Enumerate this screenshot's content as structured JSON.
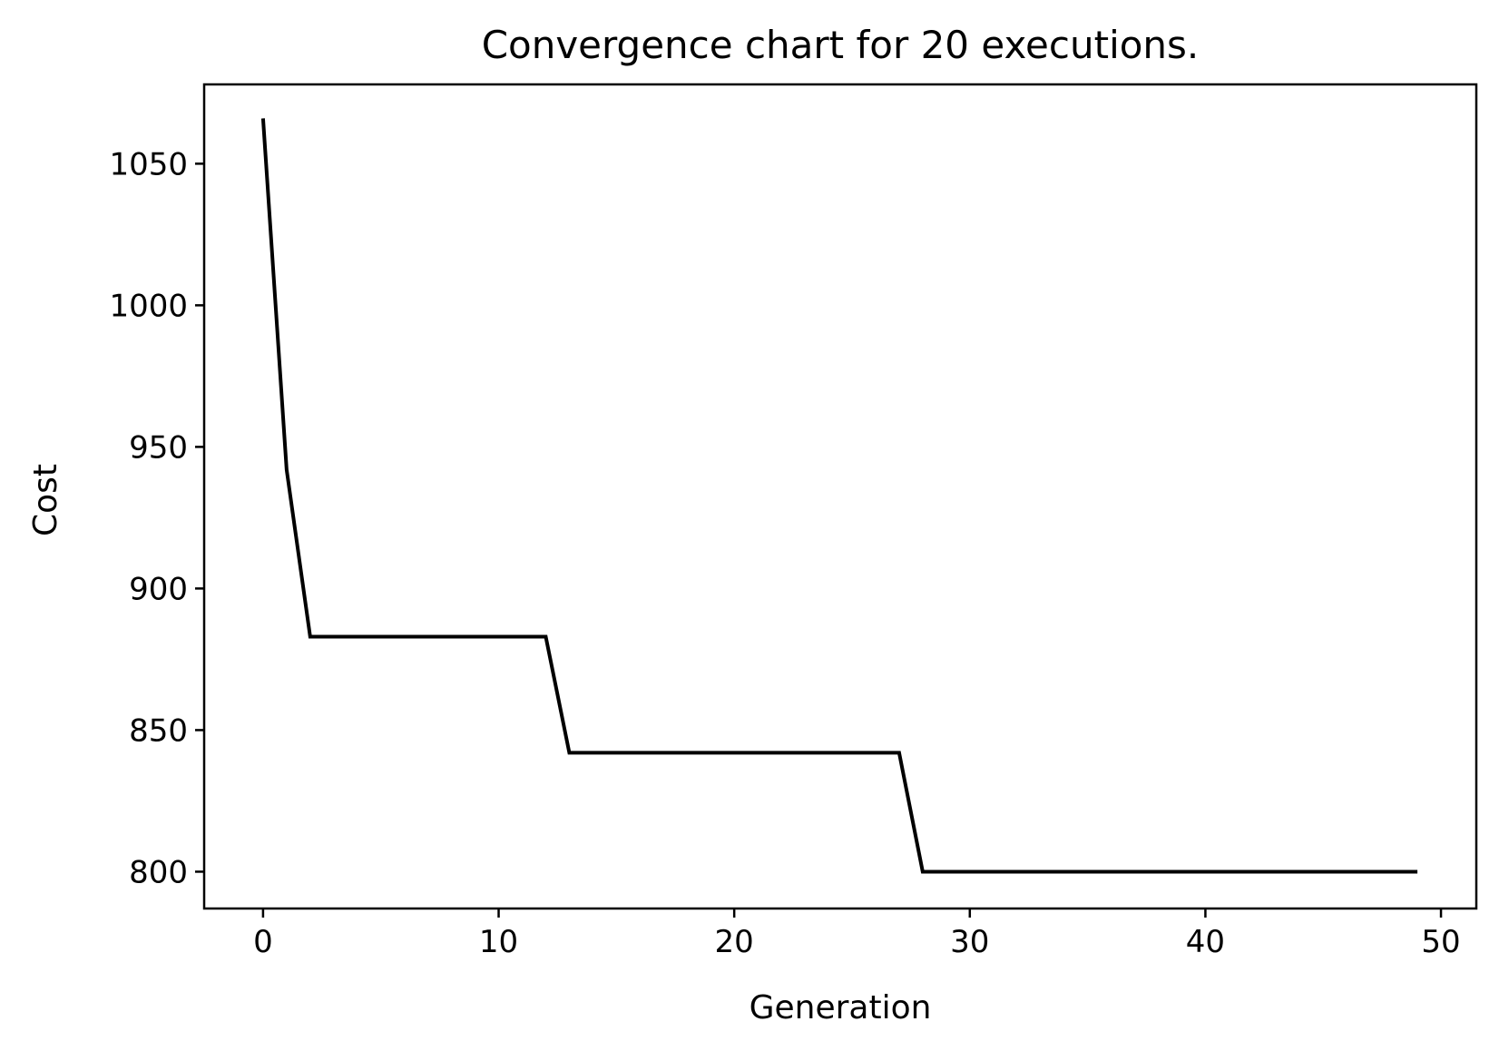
{
  "chart_data": {
    "type": "line",
    "title": "Convergence chart for 20 executions.",
    "xlabel": "Generation",
    "ylabel": "Cost",
    "xlim": [
      -2.5,
      51.5
    ],
    "ylim": [
      787,
      1078
    ],
    "x_ticks": [
      0,
      10,
      20,
      30,
      40,
      50
    ],
    "x_tick_labels": [
      "0",
      "10",
      "20",
      "30",
      "40",
      "50"
    ],
    "y_ticks": [
      800,
      850,
      900,
      950,
      1000,
      1050
    ],
    "y_tick_labels": [
      "800",
      "850",
      "900",
      "950",
      "1000",
      "1050"
    ],
    "grid": false,
    "series": [
      {
        "color": "#000000",
        "x": [
          0,
          1,
          2,
          12,
          13,
          27,
          28,
          49
        ],
        "y": [
          1066,
          942,
          883,
          883,
          842,
          842,
          800,
          800
        ]
      }
    ]
  }
}
